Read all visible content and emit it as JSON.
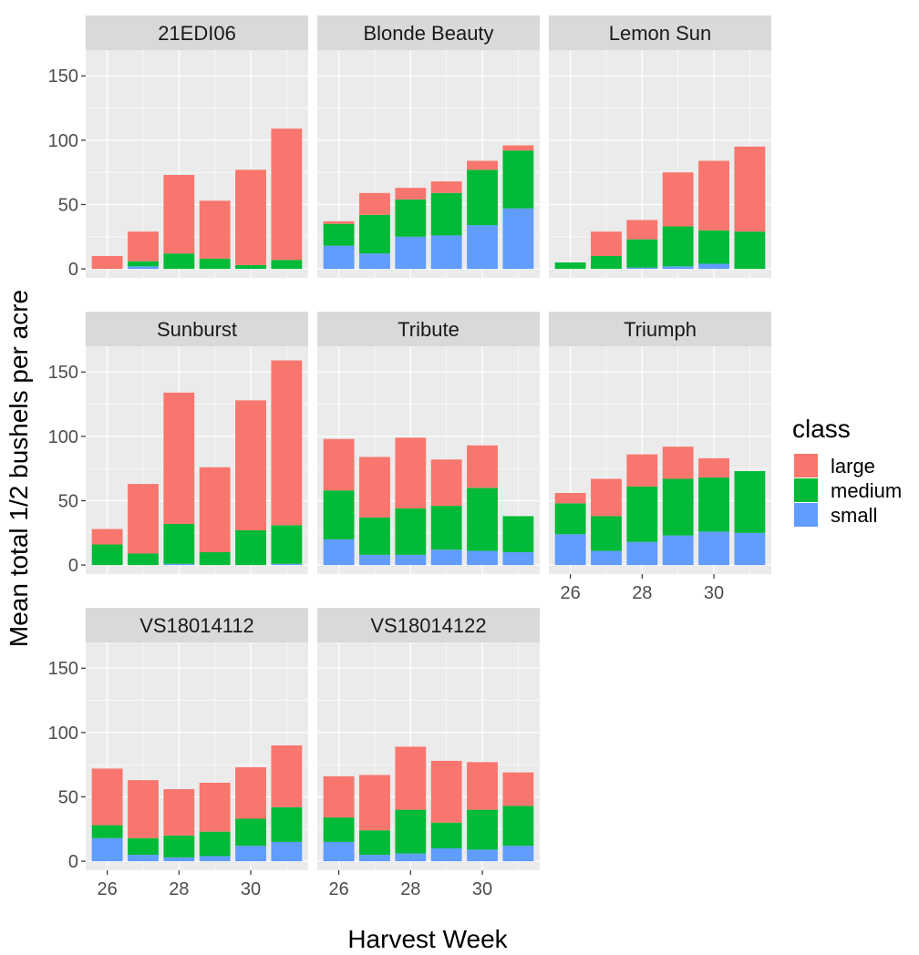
{
  "chart_data": {
    "type": "bar",
    "stacked": true,
    "facet_by": "variety",
    "xlabel": "Harvest Week",
    "ylabel": "Mean total 1/2 bushels per acre",
    "x": [
      26,
      27,
      28,
      29,
      30,
      31
    ],
    "x_tick_labels": [
      "26",
      "28",
      "30"
    ],
    "y_tick_labels": [
      "0",
      "50",
      "100",
      "150"
    ],
    "ylim": [
      -7,
      170
    ],
    "grid": true,
    "legend": {
      "title": "class",
      "position": "right",
      "entries": [
        "large",
        "medium",
        "small"
      ]
    },
    "colors": {
      "large": "#F8766D",
      "medium": "#00BA38",
      "small": "#619CFF",
      "panel_bg": "#EBEBEB",
      "strip_bg": "#D9D9D9",
      "grid": "#FFFFFF"
    },
    "facets": [
      {
        "label": "21EDI06",
        "small": [
          0,
          2,
          0,
          0,
          0,
          0
        ],
        "medium": [
          0,
          4,
          12,
          8,
          3,
          7
        ],
        "large": [
          10,
          23,
          61,
          45,
          74,
          102
        ]
      },
      {
        "label": "Blonde Beauty",
        "small": [
          18,
          12,
          25,
          26,
          34,
          47
        ],
        "medium": [
          17,
          30,
          29,
          33,
          43,
          45
        ],
        "large": [
          2,
          17,
          9,
          9,
          7,
          4
        ]
      },
      {
        "label": "Lemon Sun",
        "small": [
          0,
          0,
          1,
          2,
          4,
          0
        ],
        "medium": [
          5,
          10,
          22,
          31,
          26,
          29
        ],
        "large": [
          0,
          19,
          15,
          42,
          54,
          66
        ]
      },
      {
        "label": "Sunburst",
        "small": [
          0,
          0,
          1,
          0,
          0,
          1
        ],
        "medium": [
          16,
          9,
          31,
          10,
          27,
          30
        ],
        "large": [
          12,
          54,
          102,
          66,
          101,
          128
        ]
      },
      {
        "label": "Tribute",
        "small": [
          20,
          8,
          8,
          12,
          11,
          10
        ],
        "medium": [
          38,
          29,
          36,
          34,
          49,
          28
        ],
        "large": [
          40,
          47,
          55,
          36,
          33,
          0
        ]
      },
      {
        "label": "Triumph",
        "small": [
          24,
          11,
          18,
          23,
          26,
          25
        ],
        "medium": [
          24,
          27,
          43,
          44,
          42,
          48
        ],
        "large": [
          8,
          29,
          25,
          25,
          15,
          0
        ]
      },
      {
        "label": "VS18014112",
        "small": [
          18,
          5,
          3,
          4,
          12,
          15
        ],
        "medium": [
          10,
          13,
          17,
          19,
          21,
          27
        ],
        "large": [
          44,
          45,
          36,
          38,
          40,
          48
        ]
      },
      {
        "label": "VS18014122",
        "small": [
          15,
          5,
          6,
          10,
          9,
          12
        ],
        "medium": [
          19,
          19,
          34,
          20,
          31,
          31
        ],
        "large": [
          32,
          43,
          49,
          48,
          37,
          26
        ]
      }
    ]
  }
}
